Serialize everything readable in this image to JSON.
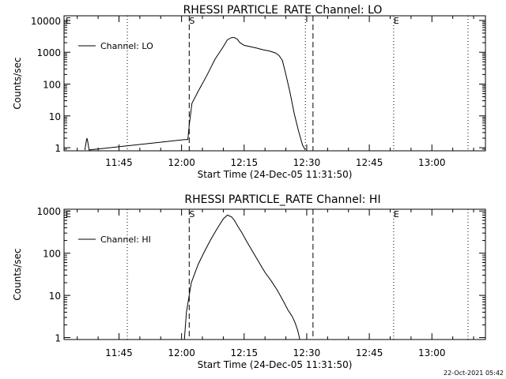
{
  "footer": {
    "timestamp": "22-Oct-2021 05:42"
  },
  "chart_data": [
    {
      "type": "line",
      "title": "RHESSI PARTICLE_RATE Channel: LO",
      "xlabel": "Start Time (24-Dec-05 11:31:50)",
      "ylabel": "Counts/sec",
      "yscale": "log",
      "ylim": [
        0.8,
        14000
      ],
      "xlim": [
        "11:31:50",
        "13:12:50"
      ],
      "grid": false,
      "legend": {
        "placement": "top-left",
        "entries": [
          "Channel: LO"
        ]
      },
      "x_ticks": [
        "11:45",
        "12:00",
        "12:15",
        "12:30",
        "12:45",
        "13:00"
      ],
      "y_ticks": [
        "1",
        "10",
        "100",
        "1000",
        "10000"
      ],
      "markers": [
        {
          "time": "11:47:00",
          "style": "dotted",
          "label": ""
        },
        {
          "time": "12:01:50",
          "style": "dashed",
          "label": "S"
        },
        {
          "time": "12:29:40",
          "style": "dotted",
          "label": ""
        },
        {
          "time": "12:31:30",
          "style": "dashed",
          "label": ""
        },
        {
          "time": "12:50:50",
          "style": "dotted",
          "label": "E"
        },
        {
          "time": "13:08:40",
          "style": "dotted",
          "label": ""
        }
      ],
      "start_label": "E",
      "series": [
        {
          "name": "Channel: LO",
          "x": [
            "11:36:50",
            "11:37:10",
            "11:37:20",
            "11:37:30",
            "11:37:50",
            "12:00:50",
            "12:01:30",
            "12:01:50",
            "12:02:30",
            "12:04:00",
            "12:06:00",
            "12:08:00",
            "12:10:00",
            "12:11:00",
            "12:12:00",
            "12:12:40",
            "12:13:20",
            "12:14:00",
            "12:15:00",
            "12:16:30",
            "12:18:00",
            "12:19:30",
            "12:21:00",
            "12:22:30",
            "12:23:20",
            "12:24:10",
            "12:25:00",
            "12:26:00",
            "12:27:00",
            "12:28:00",
            "12:29:00",
            "12:29:40"
          ],
          "values": [
            0.85,
            1.6,
            2,
            1.6,
            0.85,
            1.8,
            1.8,
            5,
            25,
            60,
            180,
            600,
            1500,
            2500,
            2900,
            2900,
            2600,
            2000,
            1650,
            1500,
            1350,
            1200,
            1100,
            950,
            800,
            550,
            200,
            55,
            12,
            3.5,
            1.2,
            0.85
          ]
        }
      ]
    },
    {
      "type": "line",
      "title": "RHESSI PARTICLE_RATE Channel: HI",
      "xlabel": "Start Time (24-Dec-05 11:31:50)",
      "ylabel": "Counts/sec",
      "yscale": "log",
      "ylim": [
        0.9,
        1100
      ],
      "xlim": [
        "11:31:50",
        "13:12:50"
      ],
      "grid": false,
      "legend": {
        "placement": "top-left",
        "entries": [
          "Channel: HI"
        ]
      },
      "x_ticks": [
        "11:45",
        "12:00",
        "12:15",
        "12:30",
        "12:45",
        "13:00"
      ],
      "y_ticks": [
        "1",
        "10",
        "100",
        "1000"
      ],
      "markers": [
        {
          "time": "11:47:00",
          "style": "dotted",
          "label": ""
        },
        {
          "time": "12:01:50",
          "style": "dashed",
          "label": "S"
        },
        {
          "time": "12:31:30",
          "style": "dashed",
          "label": ""
        },
        {
          "time": "12:50:50",
          "style": "dotted",
          "label": "E"
        },
        {
          "time": "13:08:40",
          "style": "dotted",
          "label": ""
        }
      ],
      "start_label": "E",
      "series": [
        {
          "name": "Channel: HI",
          "x": [
            "12:00:40",
            "12:01:10",
            "12:01:50",
            "12:02:20",
            "12:03:00",
            "12:04:00",
            "12:05:30",
            "12:07:00",
            "12:08:30",
            "12:10:00",
            "12:11:00",
            "12:12:00",
            "12:12:40",
            "12:13:30",
            "12:14:30",
            "12:15:30",
            "12:17:00",
            "12:18:30",
            "12:20:00",
            "12:21:30",
            "12:23:00",
            "12:24:30",
            "12:25:30",
            "12:26:30",
            "12:27:10",
            "12:27:50",
            "12:28:20"
          ],
          "values": [
            0.9,
            4,
            10,
            20,
            30,
            55,
            110,
            210,
            380,
            650,
            800,
            720,
            600,
            430,
            300,
            200,
            110,
            62,
            35,
            22,
            13,
            7,
            4.5,
            3.2,
            2.3,
            1.5,
            0.9
          ]
        }
      ]
    }
  ]
}
